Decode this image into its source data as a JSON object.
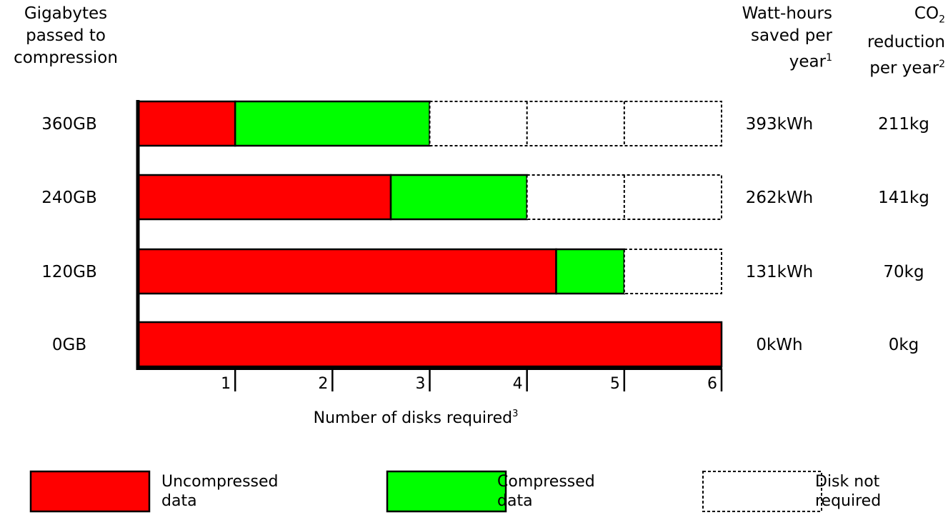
{
  "chart_data": {
    "type": "bar",
    "orientation": "horizontal",
    "stacked": true,
    "categories": [
      "360GB",
      "240GB",
      "120GB",
      "0GB"
    ],
    "series": [
      {
        "name": "Uncompressed data",
        "color": "#ff0000",
        "values": [
          1,
          2.6,
          4.3,
          6
        ]
      },
      {
        "name": "Compressed data",
        "color": "#00ff00",
        "values": [
          2,
          1.4,
          0.7,
          0
        ]
      },
      {
        "name": "Disk not required",
        "color": "#ffffff",
        "values": [
          3,
          2,
          1,
          0
        ]
      }
    ],
    "x_ticks": [
      "1",
      "2",
      "3",
      "4",
      "5",
      "6"
    ],
    "xlim": [
      0,
      6
    ],
    "xlabel": "Number of disks required",
    "xlabel_sup": "3",
    "ylabel_lines": [
      "Gigabytes",
      "passed to",
      "compression"
    ],
    "columns": [
      {
        "header_lines": [
          "Watt-hours",
          "saved per",
          "year"
        ],
        "header_sup": "1",
        "values": [
          "393kWh",
          "262kWh",
          "131kWh",
          "0kWh"
        ]
      },
      {
        "header_lines": [
          "CO",
          "reduction",
          "per year"
        ],
        "header_sub": "2",
        "header_sup": "2",
        "values": [
          "211kg",
          "141kg",
          "70kg",
          "0kg"
        ]
      }
    ],
    "legend": [
      {
        "label_lines": [
          "Uncompressed",
          "data"
        ],
        "color": "#ff0000"
      },
      {
        "label_lines": [
          "Compressed",
          "data"
        ],
        "color": "#00ff00"
      },
      {
        "label_lines": [
          "Disk not",
          "required"
        ],
        "color": "#ffffff"
      }
    ],
    "legend_position": "bottom"
  }
}
